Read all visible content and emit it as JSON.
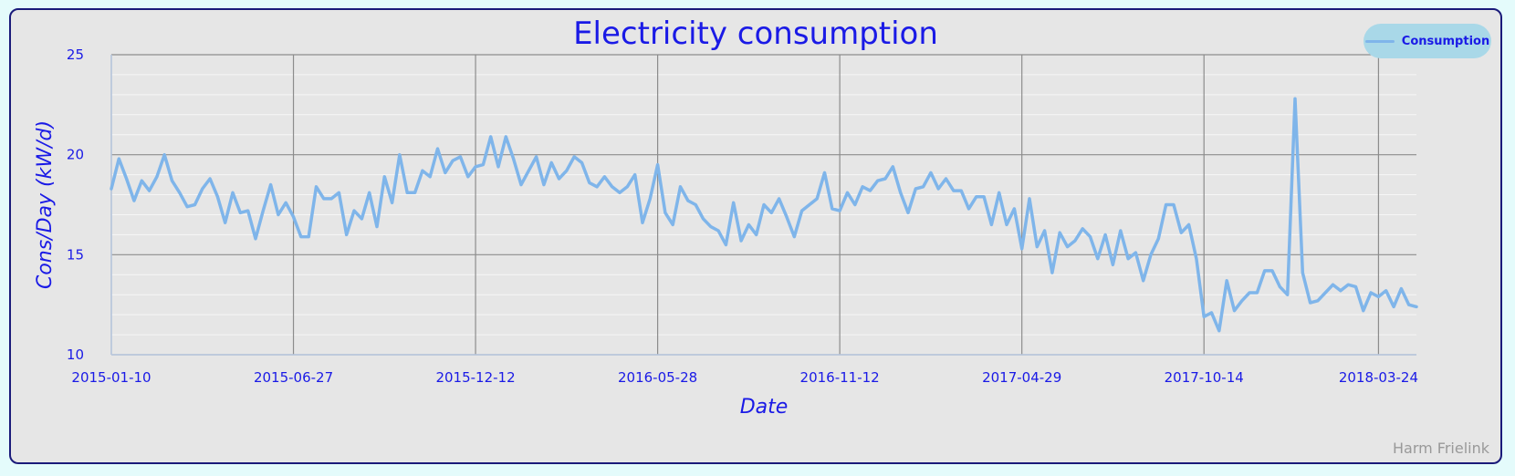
{
  "chart_data": {
    "type": "line",
    "title": "Electricity consumption",
    "xlabel": "Date",
    "ylabel": "Cons/Day (kW/d)",
    "credit": "Harm Frielink",
    "ylim": [
      10,
      25
    ],
    "y_ticks": [
      10,
      15,
      20,
      25
    ],
    "x_ticks": [
      "2015-01-10",
      "2015-06-27",
      "2015-12-12",
      "2016-05-28",
      "2016-11-12",
      "2017-04-29",
      "2017-10-14",
      "2018-03-24"
    ],
    "x_range": [
      "2015-01-10",
      "2018-04-28"
    ],
    "grid": true,
    "legend_position": "top-right",
    "series": [
      {
        "name": "Consumption",
        "color": "#7fb5ea",
        "start_date": "2015-01-10",
        "interval_days": 7,
        "values": [
          18.3,
          19.8,
          18.8,
          17.7,
          18.7,
          18.2,
          18.9,
          20.0,
          18.7,
          18.1,
          17.4,
          17.5,
          18.3,
          18.8,
          17.9,
          16.6,
          18.1,
          17.1,
          17.2,
          15.8,
          17.2,
          18.5,
          17.0,
          17.6,
          16.9,
          15.9,
          15.9,
          18.4,
          17.8,
          17.8,
          18.1,
          16.0,
          17.2,
          16.8,
          18.1,
          16.4,
          18.9,
          17.6,
          20.0,
          18.1,
          18.1,
          19.2,
          18.9,
          20.3,
          19.1,
          19.7,
          19.9,
          18.9,
          19.4,
          19.5,
          20.9,
          19.4,
          20.9,
          19.8,
          18.5,
          19.2,
          19.9,
          18.5,
          19.6,
          18.8,
          19.2,
          19.9,
          19.6,
          18.6,
          18.4,
          18.9,
          18.4,
          18.1,
          18.4,
          19.0,
          16.6,
          17.8,
          19.5,
          17.1,
          16.5,
          18.4,
          17.7,
          17.5,
          16.8,
          16.4,
          16.2,
          15.5,
          17.6,
          15.7,
          16.5,
          16.0,
          17.5,
          17.1,
          17.8,
          16.9,
          15.9,
          17.2,
          17.5,
          17.8,
          19.1,
          17.3,
          17.2,
          18.1,
          17.5,
          18.4,
          18.2,
          18.7,
          18.8,
          19.4,
          18.1,
          17.1,
          18.3,
          18.4,
          19.1,
          18.3,
          18.8,
          18.2,
          18.2,
          17.3,
          17.9,
          17.9,
          16.5,
          18.1,
          16.5,
          17.3,
          15.3,
          17.8,
          15.4,
          16.2,
          14.1,
          16.1,
          15.4,
          15.7,
          16.3,
          15.9,
          14.8,
          16.0,
          14.5,
          16.2,
          14.8,
          15.1,
          13.7,
          15.0,
          15.8,
          17.5,
          17.5,
          16.1,
          16.5,
          14.8,
          11.9,
          12.1,
          11.2,
          13.7,
          12.2,
          12.7,
          13.1,
          13.1,
          14.2,
          14.2,
          13.4,
          13.0,
          22.8,
          14.1,
          12.6,
          12.7,
          13.1,
          13.5,
          13.2,
          13.5,
          13.4,
          12.2,
          13.1,
          12.9,
          13.2,
          12.4,
          13.3,
          12.5,
          12.4
        ]
      }
    ]
  }
}
